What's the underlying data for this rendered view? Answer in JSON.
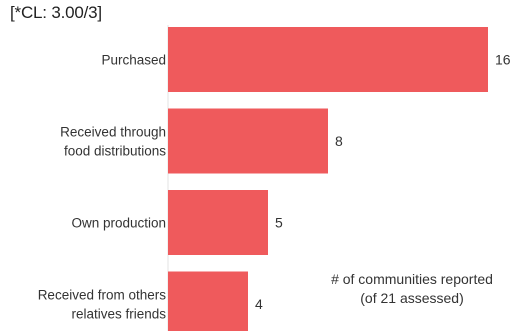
{
  "confidence_tag": "[*CL: 3.00/3]",
  "note": {
    "line1": "# of communities reported",
    "line2": "(of 21 assessed)"
  },
  "colors": {
    "bar": "#ef5a5c",
    "label": "#333333",
    "value": "#333333"
  },
  "chart_data": {
    "type": "bar",
    "orientation": "horizontal",
    "categories": [
      [
        "Purchased"
      ],
      [
        "Received through",
        "food distributions"
      ],
      [
        "Own production"
      ],
      [
        "Received from others",
        "relatives friends"
      ]
    ],
    "values": [
      16,
      8,
      5,
      4
    ],
    "data_labels": [
      "16",
      "8",
      "5",
      "4"
    ],
    "xlim": [
      0,
      16
    ],
    "grid": false,
    "legend": "none"
  }
}
